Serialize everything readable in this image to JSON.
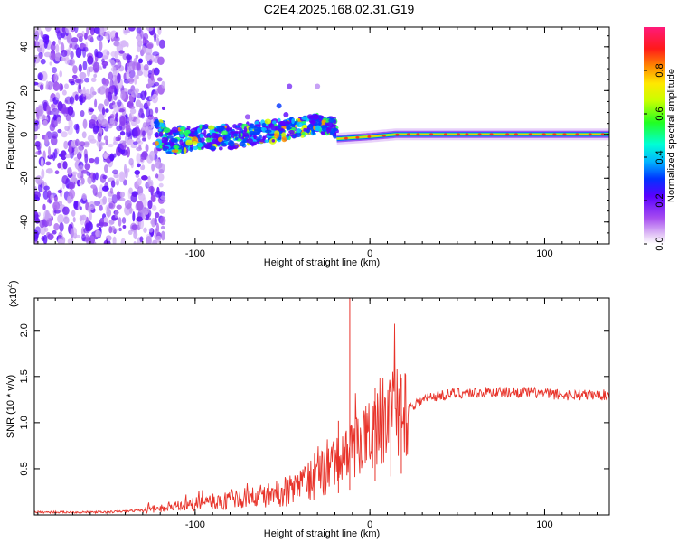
{
  "page": {
    "title": "C2E4.2025.168.02.31.G19"
  },
  "chart_data": [
    {
      "type": "heatmap",
      "xlabel": "Height of straight line (km)",
      "ylabel": "Frequency (Hz)",
      "xlim": [
        -192,
        137
      ],
      "ylim": [
        -50,
        49
      ],
      "xticks": [
        -100,
        0,
        100
      ],
      "yticks": [
        -40,
        -20,
        0,
        20,
        40
      ],
      "colorbar": {
        "label": "Normalized spectral amplitude",
        "range": [
          0,
          1
        ],
        "ticks": [
          0.0,
          0.2,
          0.4,
          0.6,
          0.8
        ]
      },
      "ridge": [
        {
          "x": -118,
          "y": -3
        },
        {
          "x": -100,
          "y": -2
        },
        {
          "x": -80,
          "y": -1
        },
        {
          "x": -60,
          "y": 1
        },
        {
          "x": -40,
          "y": 3
        },
        {
          "x": -28,
          "y": 5
        },
        {
          "x": -20,
          "y": 3
        },
        {
          "x": -19,
          "y": -2
        },
        {
          "x": 0,
          "y": -1
        },
        {
          "x": 15,
          "y": 0
        },
        {
          "x": 137,
          "y": 0
        }
      ],
      "grid": false
    },
    {
      "type": "line",
      "xlabel": "Height of straight line (km)",
      "ylabel": "SNR (10 * v/v)",
      "scale_label": "(x10",
      "scale_exponent": "4",
      "xlim": [
        -192,
        137
      ],
      "ylim": [
        0,
        2.35
      ],
      "xticks": [
        -100,
        0,
        100
      ],
      "yticks": [
        0.5,
        1.0,
        1.5,
        2.0
      ],
      "ytick_labels": [
        "0.5",
        "1.0",
        "1.5",
        "2.0"
      ],
      "color": "#e8332a",
      "envelope": [
        {
          "x": -192,
          "y": 0.03
        },
        {
          "x": -150,
          "y": 0.03
        },
        {
          "x": -130,
          "y": 0.05
        },
        {
          "x": -110,
          "y": 0.09
        },
        {
          "x": -90,
          "y": 0.14
        },
        {
          "x": -70,
          "y": 0.18
        },
        {
          "x": -55,
          "y": 0.22
        },
        {
          "x": -40,
          "y": 0.3
        },
        {
          "x": -30,
          "y": 0.45
        },
        {
          "x": -22,
          "y": 0.55
        },
        {
          "x": -15,
          "y": 0.62
        },
        {
          "x": -5,
          "y": 0.8
        },
        {
          "x": 5,
          "y": 0.95
        },
        {
          "x": 15,
          "y": 1.08
        },
        {
          "x": 25,
          "y": 1.2
        },
        {
          "x": 35,
          "y": 1.28
        },
        {
          "x": 50,
          "y": 1.32
        },
        {
          "x": 70,
          "y": 1.33
        },
        {
          "x": 90,
          "y": 1.33
        },
        {
          "x": 110,
          "y": 1.3
        },
        {
          "x": 137,
          "y": 1.3
        }
      ],
      "spikes": [
        {
          "x": -11.5,
          "y": 2.35
        },
        {
          "x": -18,
          "y": 1.02
        },
        {
          "x": 3,
          "y": 1.38
        },
        {
          "x": 12,
          "y": 1.42
        },
        {
          "x": 18,
          "y": 1.48
        }
      ],
      "grid": false
    }
  ]
}
